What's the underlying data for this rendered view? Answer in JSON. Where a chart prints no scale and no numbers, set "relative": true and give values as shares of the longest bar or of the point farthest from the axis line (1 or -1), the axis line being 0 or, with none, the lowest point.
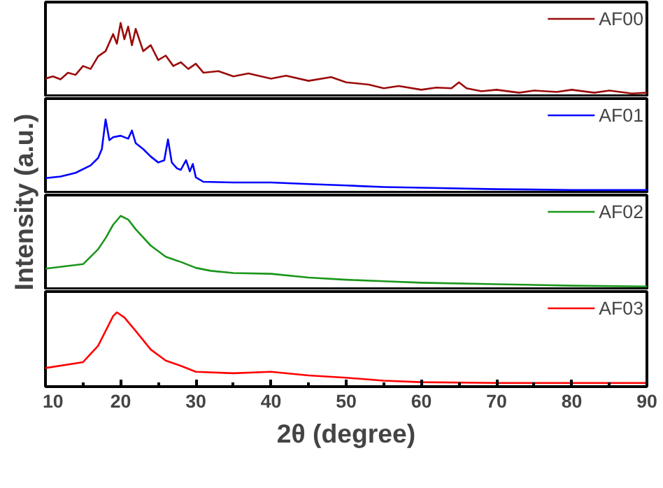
{
  "chart_data": [
    {
      "type": "line",
      "relative": true,
      "x": [
        10,
        11,
        12,
        13,
        14,
        15,
        16,
        17,
        18,
        19,
        19.5,
        20,
        20.5,
        21,
        21.5,
        22,
        23,
        24,
        25,
        26,
        27,
        28,
        29,
        30,
        31,
        33,
        35,
        37,
        40,
        42,
        45,
        48,
        50,
        53,
        55,
        57,
        60,
        62,
        64,
        65,
        66,
        68,
        70,
        73,
        75,
        78,
        80,
        83,
        85,
        88,
        90
      ],
      "series": [
        {
          "name": "AF00",
          "color": "#9b0b0b",
          "values": [
            0.25,
            0.28,
            0.24,
            0.33,
            0.3,
            0.42,
            0.38,
            0.55,
            0.62,
            0.85,
            0.72,
            1.0,
            0.78,
            0.95,
            0.7,
            0.92,
            0.62,
            0.7,
            0.5,
            0.56,
            0.42,
            0.47,
            0.38,
            0.45,
            0.33,
            0.35,
            0.28,
            0.32,
            0.25,
            0.29,
            0.22,
            0.27,
            0.2,
            0.17,
            0.12,
            0.15,
            0.1,
            0.13,
            0.12,
            0.2,
            0.12,
            0.08,
            0.1,
            0.06,
            0.09,
            0.07,
            0.1,
            0.06,
            0.09,
            0.05,
            0.06
          ]
        }
      ],
      "xlim": [
        10,
        90
      ],
      "legend": "top right"
    },
    {
      "type": "line",
      "relative": true,
      "x": [
        10,
        12,
        14,
        16,
        17,
        17.5,
        18,
        18.5,
        19,
        20,
        21,
        21.5,
        22,
        23,
        24,
        25,
        25.8,
        26.3,
        26.8,
        27.5,
        28,
        28.7,
        29.2,
        29.6,
        30,
        31,
        35,
        40,
        45,
        50,
        55,
        60,
        70,
        80,
        90
      ],
      "series": [
        {
          "name": "AF01",
          "color": "#0000ff",
          "values": [
            0.21,
            0.23,
            0.28,
            0.38,
            0.48,
            0.6,
            1.0,
            0.72,
            0.76,
            0.78,
            0.74,
            0.85,
            0.68,
            0.6,
            0.5,
            0.42,
            0.45,
            0.73,
            0.42,
            0.34,
            0.32,
            0.45,
            0.3,
            0.4,
            0.22,
            0.16,
            0.15,
            0.15,
            0.13,
            0.11,
            0.09,
            0.08,
            0.06,
            0.05,
            0.05
          ]
        }
      ],
      "xlim": [
        10,
        90
      ],
      "legend": "top right"
    },
    {
      "type": "line",
      "relative": true,
      "x": [
        10,
        15,
        17,
        18,
        19,
        20,
        21,
        22,
        24,
        26,
        28,
        30,
        32,
        35,
        40,
        45,
        50,
        55,
        60,
        70,
        80,
        90
      ],
      "series": [
        {
          "name": "AF02",
          "color": "#1a961a",
          "values": [
            0.29,
            0.35,
            0.55,
            0.7,
            0.88,
            1.0,
            0.95,
            0.82,
            0.6,
            0.45,
            0.38,
            0.3,
            0.26,
            0.23,
            0.22,
            0.17,
            0.14,
            0.12,
            0.1,
            0.08,
            0.06,
            0.05
          ]
        }
      ],
      "xlim": [
        10,
        90
      ],
      "legend": "top right"
    },
    {
      "type": "line",
      "relative": true,
      "x": [
        10,
        15,
        17,
        18,
        19,
        19.5,
        20.5,
        22,
        24,
        26,
        28,
        30,
        35,
        40,
        45,
        50,
        55,
        60,
        70,
        80,
        90
      ],
      "series": [
        {
          "name": "AF03",
          "color": "#ff0000",
          "values": [
            0.25,
            0.33,
            0.55,
            0.75,
            0.95,
            1.0,
            0.93,
            0.75,
            0.5,
            0.35,
            0.28,
            0.2,
            0.18,
            0.2,
            0.15,
            0.12,
            0.08,
            0.06,
            0.05,
            0.05,
            0.05
          ]
        }
      ],
      "xlim": [
        10,
        90
      ],
      "xticks": [
        10,
        {
          "value": 15,
          "label": null
        },
        20,
        {
          "value": 25,
          "label": null
        },
        30,
        {
          "value": 35,
          "label": null
        },
        40,
        {
          "value": 45,
          "label": null
        },
        50,
        {
          "value": 55,
          "label": null
        },
        60,
        {
          "value": 65,
          "label": null
        },
        70,
        {
          "value": 75,
          "label": null
        },
        80,
        {
          "value": 85,
          "label": null
        },
        90
      ],
      "xlabel": "2θ (degree)",
      "ylabel": "Intensity (a.u.)",
      "legend": "top right",
      "tick_labels": "x"
    }
  ]
}
